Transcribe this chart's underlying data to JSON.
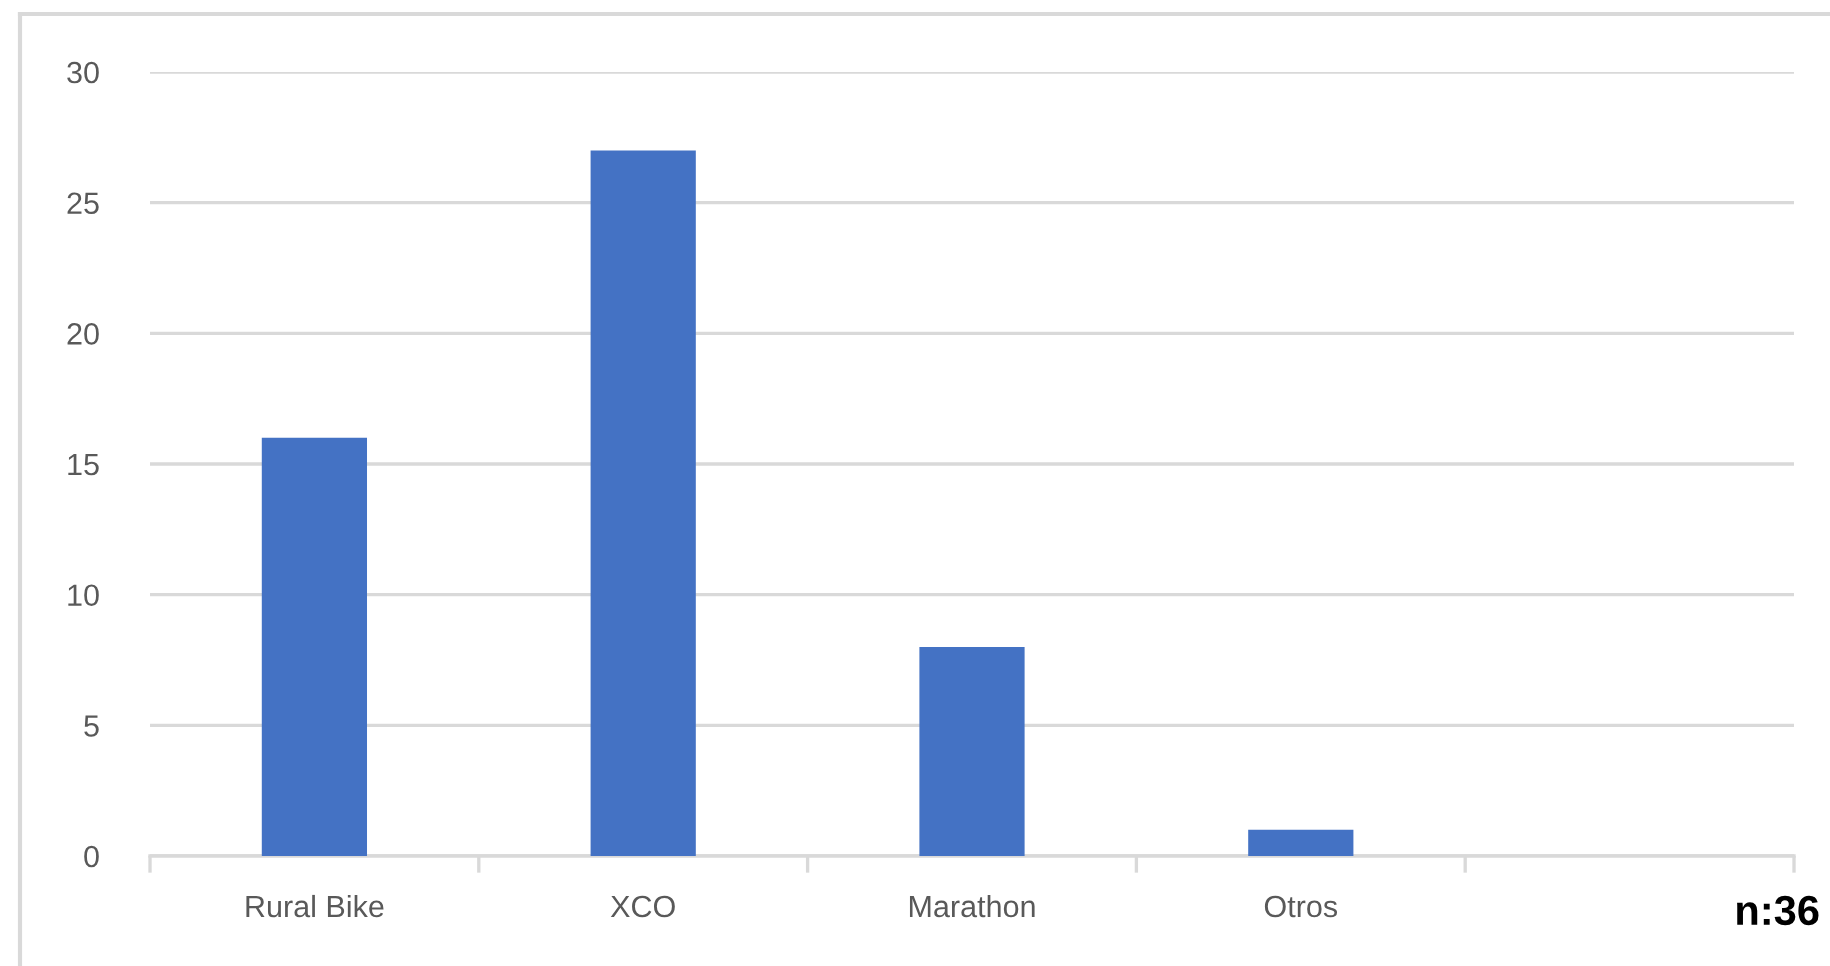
{
  "chart_data": {
    "type": "bar",
    "categories": [
      "Rural Bike",
      "XCO",
      "Marathon",
      "Otros",
      null
    ],
    "values": [
      16,
      27,
      8,
      1,
      null
    ],
    "color": "#4472c4",
    "ylim": [
      0,
      30
    ],
    "yticks": [
      0,
      5,
      10,
      15,
      20,
      25,
      30
    ],
    "grid": "y",
    "annotations": [
      "n:36"
    ]
  }
}
